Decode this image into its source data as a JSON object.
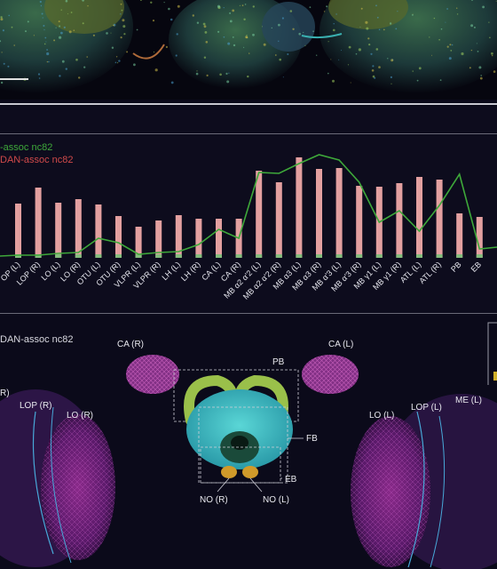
{
  "top_panel": {
    "scale_bar": ""
  },
  "legend": {
    "series_green": "-assoc nc82",
    "series_red": "DAN-assoc nc82",
    "green_color": "#3ea83a",
    "red_color": "#e3a0a0"
  },
  "chart_data": {
    "type": "bar",
    "categories": [
      "OP (L)",
      "LOP (R)",
      "LO (L)",
      "LO (R)",
      "OTU (L)",
      "OTU (R)",
      "VLPR (L)",
      "VLPR (R)",
      "LH (L)",
      "LH (R)",
      "CA (L)",
      "CA (R)",
      "MB α2 α'2 (L)",
      "MB α2 α'2 (R)",
      "MB α3 (L)",
      "MB α3 (R)",
      "MB α'3 (L)",
      "MB α'3 (R)",
      "MB γ1 (L)",
      "MB γ1 (R)",
      "ATL (L)",
      "ATL (R)",
      "PB",
      "EB"
    ],
    "series": [
      {
        "name": "DAN-assoc nc82",
        "type": "bar",
        "color": "#e3a0a0",
        "values": [
          61,
          79,
          62,
          66,
          60,
          47,
          35,
          42,
          48,
          44,
          44,
          44,
          98,
          85,
          113,
          100,
          101,
          81,
          80,
          84,
          91,
          88,
          50,
          46
        ]
      },
      {
        "name": "-assoc nc82",
        "type": "line",
        "color": "#3ea83a",
        "values": [
          3,
          3,
          5,
          6,
          22,
          17,
          4,
          6,
          7,
          15,
          32,
          22,
          96,
          95,
          106,
          116,
          110,
          85,
          40,
          53,
          30,
          59,
          94,
          10
        ]
      }
    ],
    "ylim": [
      0,
      130
    ],
    "xlabel": "",
    "ylabel": ""
  },
  "brain_panel": {
    "title": "DAN-assoc nc82",
    "labels": {
      "ca_r": "CA (R)",
      "ca_l": "CA (L)",
      "pb": "PB",
      "fb": "FB",
      "eb": "EB",
      "no_r": "NO (R)",
      "no_l": "NO (L)",
      "lop_r": "LOP (R)",
      "lo_r": "LO (R)",
      "r_partial": "R)",
      "lo_l": "LO (L)",
      "lop_l": "LOP (L)",
      "me_l": "ME (L)"
    }
  }
}
